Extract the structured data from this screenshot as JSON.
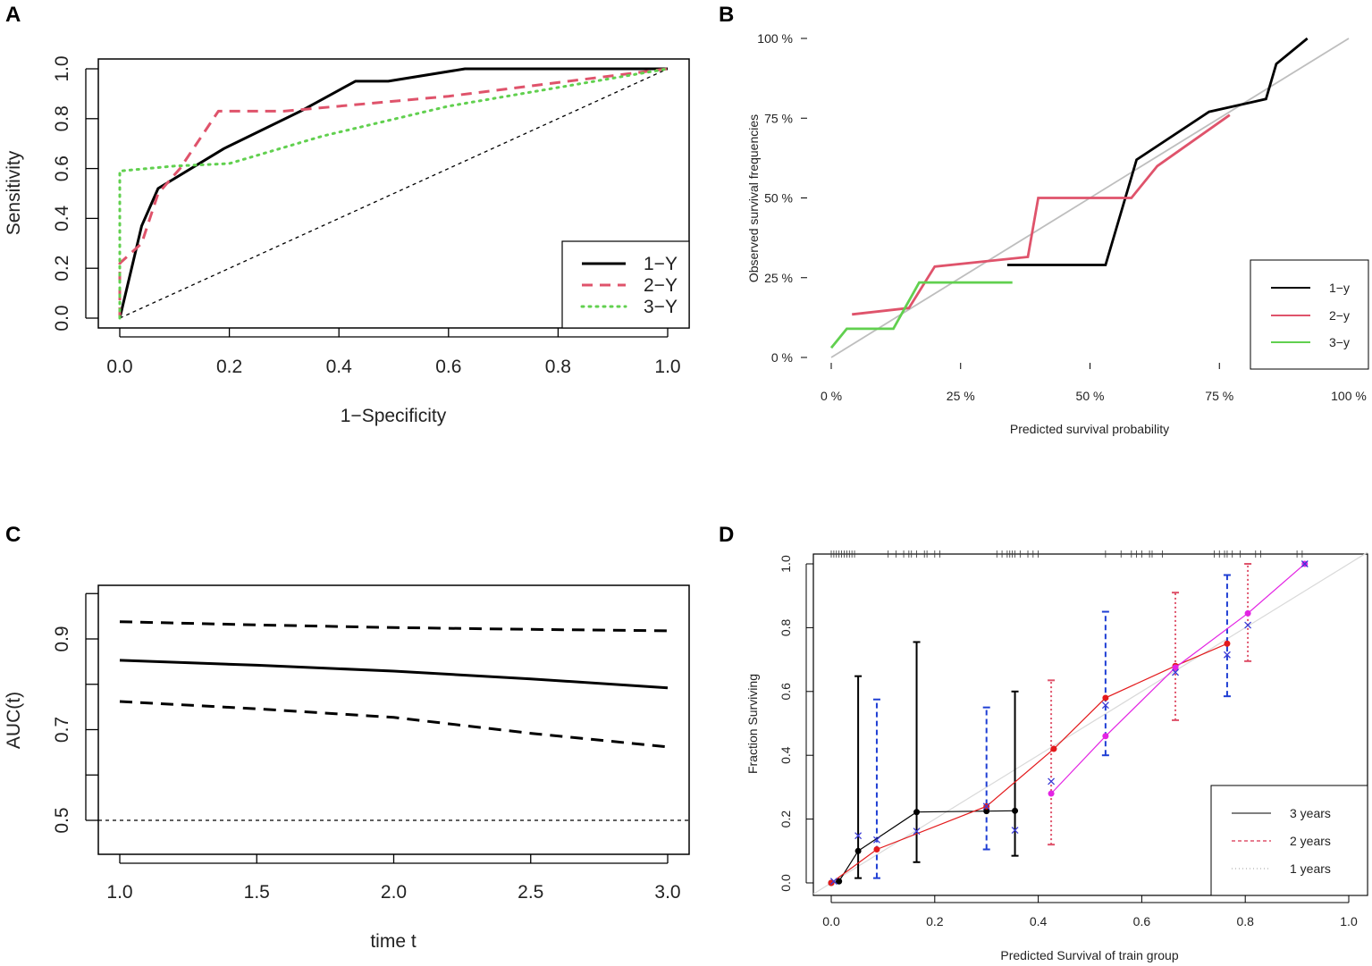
{
  "chart_data": [
    {
      "panel": "A",
      "type": "line",
      "xlabel": "1−Specificity",
      "ylabel": "Sensitivity",
      "xlim": [
        0,
        1
      ],
      "ylim": [
        0,
        1
      ],
      "xticks": [
        "0.0",
        "0.2",
        "0.4",
        "0.6",
        "0.8",
        "1.0"
      ],
      "yticks": [
        "0.0",
        "0.2",
        "0.4",
        "0.6",
        "0.8",
        "1.0"
      ],
      "xtick_values": [
        0,
        0.2,
        0.4,
        0.6,
        0.8,
        1.0
      ],
      "ytick_values": [
        0,
        0.2,
        0.4,
        0.6,
        0.8,
        1.0
      ],
      "legend_position": "bottom-right",
      "reference": {
        "name": "chance",
        "color": "#000000",
        "points": [
          [
            0,
            0
          ],
          [
            1,
            1
          ]
        ]
      },
      "series": [
        {
          "name": "1−Y",
          "color": "#000000",
          "style": "solid",
          "points": [
            [
              0,
              0
            ],
            [
              0.04,
              0.37
            ],
            [
              0.07,
              0.52
            ],
            [
              0.19,
              0.68
            ],
            [
              0.33,
              0.83
            ],
            [
              0.43,
              0.95
            ],
            [
              0.49,
              0.95
            ],
            [
              0.63,
              1.0
            ],
            [
              1,
              1
            ]
          ]
        },
        {
          "name": "2−Y",
          "color": "#df536b",
          "style": "dashed",
          "points": [
            [
              0,
              0
            ],
            [
              0,
              0.22
            ],
            [
              0.04,
              0.3
            ],
            [
              0.07,
              0.5
            ],
            [
              0.11,
              0.6
            ],
            [
              0.18,
              0.83
            ],
            [
              0.3,
              0.83
            ],
            [
              0.6,
              0.89
            ],
            [
              1,
              1
            ]
          ]
        },
        {
          "name": "3−Y",
          "color": "#61d04f",
          "style": "dotted",
          "points": [
            [
              0,
              0
            ],
            [
              0,
              0.59
            ],
            [
              0.1,
              0.61
            ],
            [
              0.2,
              0.62
            ],
            [
              0.37,
              0.73
            ],
            [
              0.6,
              0.85
            ],
            [
              1,
              1
            ]
          ]
        }
      ]
    },
    {
      "panel": "B",
      "type": "line",
      "xlabel": "Predicted survival probability",
      "ylabel": "Observed survival frequencies",
      "xlim": [
        0,
        1
      ],
      "ylim": [
        0,
        1
      ],
      "xticks": [
        "0 %",
        "25 %",
        "50 %",
        "75 %",
        "100 %"
      ],
      "yticks": [
        "0 %",
        "25 %",
        "50 %",
        "75 %",
        "100 %"
      ],
      "xtick_values": [
        0,
        0.25,
        0.5,
        0.75,
        1.0
      ],
      "ytick_values": [
        0,
        0.25,
        0.5,
        0.75,
        1.0
      ],
      "legend_position": "bottom-right",
      "reference": {
        "name": "ideal",
        "color": "#bebebe",
        "points": [
          [
            0,
            0
          ],
          [
            1,
            1
          ]
        ]
      },
      "series": [
        {
          "name": "1−y",
          "color": "#000000",
          "points": [
            [
              0.34,
              0.29
            ],
            [
              0.53,
              0.29
            ],
            [
              0.59,
              0.62
            ],
            [
              0.73,
              0.77
            ],
            [
              0.84,
              0.81
            ],
            [
              0.86,
              0.92
            ],
            [
              0.92,
              1.0
            ]
          ]
        },
        {
          "name": "2−y",
          "color": "#df536b",
          "points": [
            [
              0.04,
              0.135
            ],
            [
              0.15,
              0.155
            ],
            [
              0.2,
              0.285
            ],
            [
              0.38,
              0.315
            ],
            [
              0.4,
              0.5
            ],
            [
              0.58,
              0.5
            ],
            [
              0.63,
              0.6
            ],
            [
              0.77,
              0.76
            ]
          ]
        },
        {
          "name": "3−y",
          "color": "#61d04f",
          "points": [
            [
              0,
              0.03
            ],
            [
              0.03,
              0.09
            ],
            [
              0.12,
              0.09
            ],
            [
              0.17,
              0.235
            ],
            [
              0.35,
              0.235
            ]
          ]
        }
      ]
    },
    {
      "panel": "C",
      "type": "line",
      "xlabel": "time t",
      "ylabel": "AUC(t)",
      "xlim": [
        0.9,
        3.1
      ],
      "ylim": [
        0.43,
        1.0
      ],
      "xticks": [
        "1.0",
        "1.5",
        "2.0",
        "2.5",
        "3.0"
      ],
      "yticks": [
        "0.5",
        "0.7",
        "0.9"
      ],
      "xtick_values": [
        1.0,
        1.5,
        2.0,
        2.5,
        3.0
      ],
      "ytick_values": [
        0.5,
        0.7,
        0.9
      ],
      "extra_ticks": [
        0.6,
        0.8,
        1.0
      ],
      "reference": {
        "name": "chance",
        "color": "#000000",
        "points": [
          [
            0.9,
            0.5
          ],
          [
            3.1,
            0.5
          ]
        ]
      },
      "series": [
        {
          "name": "AUC",
          "color": "#000000",
          "style": "solid",
          "points": [
            [
              1.0,
              0.853
            ],
            [
              1.5,
              0.842
            ],
            [
              2.0,
              0.829
            ],
            [
              2.5,
              0.812
            ],
            [
              3.0,
              0.792
            ]
          ]
        },
        {
          "name": "upper CI",
          "color": "#000000",
          "style": "dashed",
          "points": [
            [
              1.0,
              0.938
            ],
            [
              1.5,
              0.931
            ],
            [
              2.0,
              0.925
            ],
            [
              2.5,
              0.921
            ],
            [
              3.0,
              0.918
            ]
          ]
        },
        {
          "name": "lower CI",
          "color": "#000000",
          "style": "dashed",
          "points": [
            [
              1.0,
              0.762
            ],
            [
              1.5,
              0.746
            ],
            [
              2.0,
              0.727
            ],
            [
              2.5,
              0.692
            ],
            [
              3.0,
              0.662
            ]
          ]
        }
      ]
    },
    {
      "panel": "D",
      "type": "line",
      "xlabel": "Predicted Survival of train group",
      "ylabel": "Fraction Surviving",
      "xlim": [
        -0.03,
        1.04
      ],
      "ylim": [
        -0.03,
        1.03
      ],
      "xticks": [
        "0.0",
        "0.2",
        "0.4",
        "0.6",
        "0.8",
        "1.0"
      ],
      "yticks": [
        "0.0",
        "0.2",
        "0.4",
        "0.6",
        "0.8",
        "1.0"
      ],
      "xtick_values": [
        0,
        0.2,
        0.4,
        0.6,
        0.8,
        1.0
      ],
      "ytick_values": [
        0,
        0.2,
        0.4,
        0.6,
        0.8,
        1.0
      ],
      "legend_position": "bottom-right",
      "reference": {
        "name": "ideal",
        "color": "#d9d9d9",
        "points": [
          [
            -0.03,
            -0.03
          ],
          [
            1.04,
            1.04
          ]
        ]
      },
      "legend": [
        {
          "name": "3 years",
          "color": "#000000",
          "style": "solid"
        },
        {
          "name": "2 years",
          "color": "#df536b",
          "style": "dashed"
        },
        {
          "name": "1 years",
          "color": "#bebebe",
          "style": "dotted"
        }
      ],
      "rug": [
        0.0,
        0.005,
        0.01,
        0.015,
        0.02,
        0.025,
        0.03,
        0.035,
        0.04,
        0.045,
        0.11,
        0.125,
        0.14,
        0.15,
        0.155,
        0.165,
        0.18,
        0.185,
        0.2,
        0.21,
        0.32,
        0.33,
        0.34,
        0.345,
        0.35,
        0.355,
        0.365,
        0.38,
        0.39,
        0.4,
        0.53,
        0.56,
        0.58,
        0.59,
        0.6,
        0.615,
        0.62,
        0.64,
        0.74,
        0.75,
        0.76,
        0.765,
        0.775,
        0.79,
        0.82,
        0.83,
        0.9,
        0.91
      ],
      "series": [
        {
          "name": "3 years",
          "color": "#000000",
          "marker": "dot",
          "points": [
            [
              0.0,
              0.0
            ],
            [
              0.015,
              0.005
            ],
            [
              0.052,
              0.1
            ],
            [
              0.165,
              0.222
            ],
            [
              0.3,
              0.225
            ],
            [
              0.355,
              0.226
            ]
          ],
          "error_bars": [
            [
              0.052,
              0.015,
              0.648
            ],
            [
              0.165,
              0.065,
              0.755
            ],
            [
              0.355,
              0.085,
              0.6
            ]
          ],
          "error_color": "#000000",
          "error_style": "solid"
        },
        {
          "name": "2 years",
          "color": "#e31a1c",
          "marker": "dot",
          "points": [
            [
              0.0,
              0.0
            ],
            [
              0.088,
              0.105
            ],
            [
              0.3,
              0.24
            ],
            [
              0.43,
              0.42
            ],
            [
              0.53,
              0.58
            ],
            [
              0.665,
              0.68
            ],
            [
              0.765,
              0.75
            ]
          ],
          "error_bars": [
            [
              0.088,
              0.015,
              0.575
            ],
            [
              0.3,
              0.105,
              0.55
            ],
            [
              0.53,
              0.4,
              0.85
            ],
            [
              0.765,
              0.585,
              0.965
            ]
          ],
          "error_color": "#1f3fd4",
          "error_style": "dashed"
        },
        {
          "name": "1 years",
          "color": "#e324e3",
          "marker": "dot",
          "points": [
            [
              0.425,
              0.28
            ],
            [
              0.53,
              0.46
            ],
            [
              0.665,
              0.675
            ],
            [
              0.805,
              0.845
            ],
            [
              0.915,
              1.0
            ]
          ],
          "error_bars": [
            [
              0.425,
              0.12,
              0.635
            ],
            [
              0.665,
              0.51,
              0.91
            ],
            [
              0.805,
              0.695,
              1.0
            ]
          ],
          "error_color": "#df536b",
          "error_style": "dotted"
        },
        {
          "name": "observed-x",
          "color": "#3b3bd6",
          "marker": "x",
          "points": [
            [
              0.005,
              0.005
            ],
            [
              0.052,
              0.148
            ],
            [
              0.088,
              0.135
            ],
            [
              0.165,
              0.162
            ],
            [
              0.3,
              0.24
            ],
            [
              0.355,
              0.165
            ],
            [
              0.425,
              0.318
            ],
            [
              0.53,
              0.557
            ],
            [
              0.665,
              0.66
            ],
            [
              0.765,
              0.715
            ],
            [
              0.805,
              0.808
            ],
            [
              0.915,
              1.0
            ]
          ]
        }
      ]
    }
  ]
}
